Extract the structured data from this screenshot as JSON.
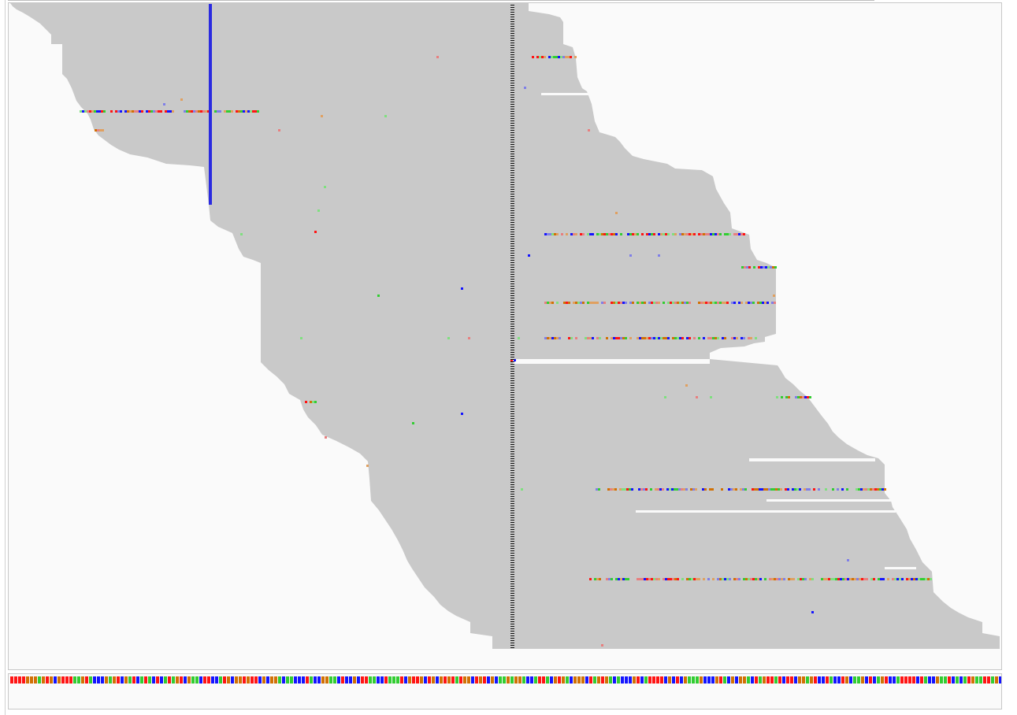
{
  "colors": {
    "panel_bg": "#fafafa",
    "read": "#c9c9c9",
    "base_A": "#32cd32",
    "base_C": "#1414ff",
    "base_G": "#d17105",
    "base_T": "#ff1414",
    "insertion": "#2b2be0",
    "low_quality_A": "#7fe07f",
    "low_quality_C": "#7f7fe8",
    "low_quality_G": "#e0a060",
    "low_quality_T": "#e87f7f"
  },
  "icons": {
    "alignment_track": "read-pileup",
    "insertion_marker": "insertion-bar",
    "center_line": "center-guide-line",
    "reference_track": "reference-sequence-bar"
  },
  "alignment_view": {
    "description_visible": false
  },
  "reference_sequence": {
    "visible_text": ""
  }
}
